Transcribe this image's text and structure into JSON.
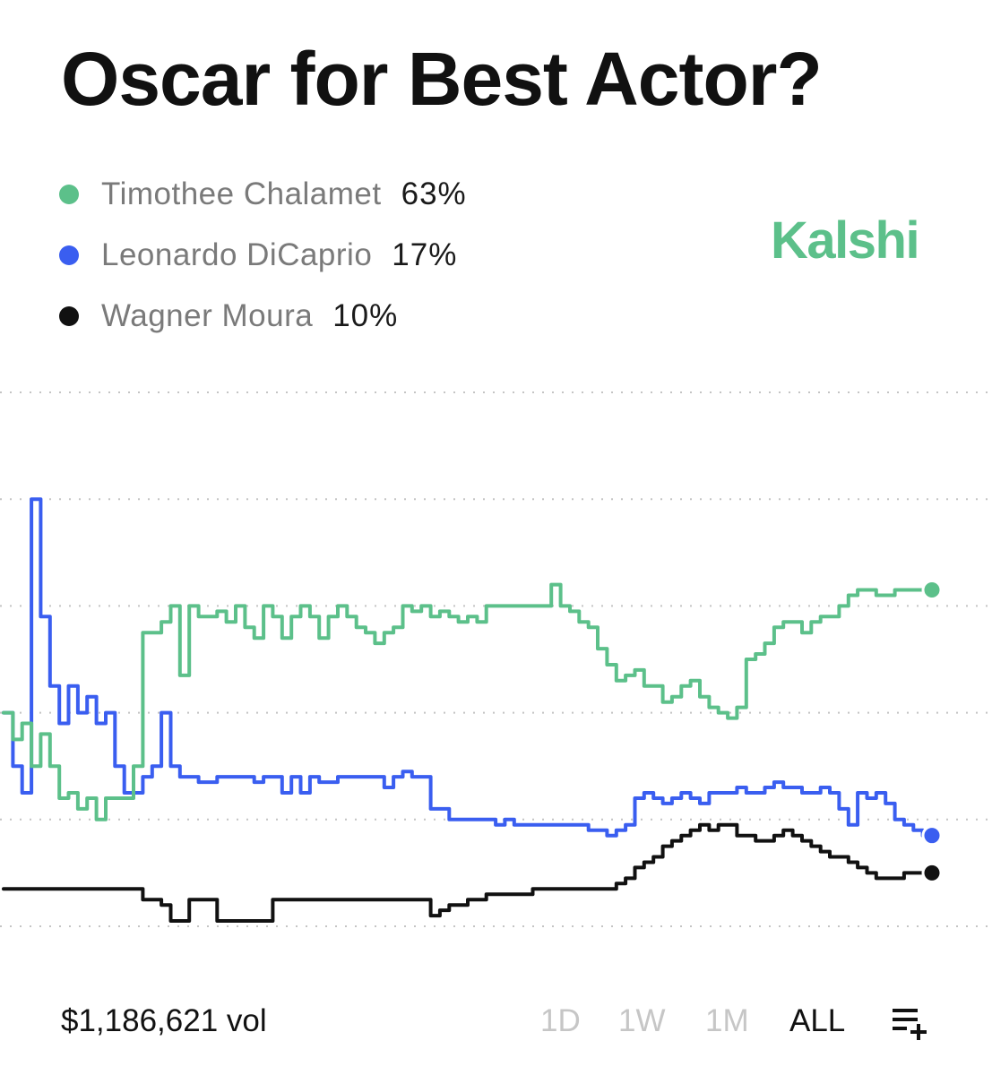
{
  "title": "Oscar for Best Actor?",
  "brand": {
    "name": "Kalshi",
    "color": "#5cc08a"
  },
  "legend": [
    {
      "name": "Timothee Chalamet",
      "pct": "63%",
      "color": "#5cc08a"
    },
    {
      "name": "Leonardo DiCaprio",
      "pct": "17%",
      "color": "#3a5ef0"
    },
    {
      "name": "Wagner Moura",
      "pct": "10%",
      "color": "#111111"
    }
  ],
  "footer": {
    "volume": "$1,186,621 vol",
    "ranges": [
      "1D",
      "1W",
      "1M",
      "ALL"
    ],
    "active_range": "ALL",
    "menu_icon": "list-add-icon"
  },
  "chart_data": {
    "type": "line",
    "grid": true,
    "grid_style": "dotted",
    "ylim": [
      0,
      100
    ],
    "gridlines": [
      0,
      20,
      40,
      60,
      80,
      100
    ],
    "x": [
      0,
      1,
      2,
      3,
      4,
      5,
      6,
      7,
      8,
      9,
      10,
      11,
      12,
      13,
      14,
      15,
      16,
      17,
      18,
      19,
      20,
      21,
      22,
      23,
      24,
      25,
      26,
      27,
      28,
      29,
      30,
      31,
      32,
      33,
      34,
      35,
      36,
      37,
      38,
      39,
      40,
      41,
      42,
      43,
      44,
      45,
      46,
      47,
      48,
      49,
      50,
      51,
      52,
      53,
      54,
      55,
      56,
      57,
      58,
      59,
      60,
      61,
      62,
      63,
      64,
      65,
      66,
      67,
      68,
      69,
      70,
      71,
      72,
      73,
      74,
      75,
      76,
      77,
      78,
      79,
      80,
      81,
      82,
      83,
      84,
      85,
      86,
      87,
      88,
      89,
      90,
      91,
      92,
      93,
      94,
      95,
      96,
      97,
      98,
      99,
      100
    ],
    "series": [
      {
        "name": "Timothee Chalamet",
        "color": "#5cc08a",
        "values": [
          40,
          35,
          38,
          30,
          36,
          30,
          24,
          25,
          22,
          24,
          20,
          24,
          24,
          24,
          30,
          55,
          55,
          57,
          60,
          47,
          60,
          58,
          58,
          59,
          57,
          60,
          56,
          54,
          60,
          58,
          54,
          58,
          60,
          58,
          54,
          58,
          60,
          58,
          56,
          55,
          53,
          55,
          56,
          60,
          59,
          60,
          58,
          59,
          58,
          57,
          58,
          57,
          60,
          60,
          60,
          60,
          60,
          60,
          60,
          64,
          60,
          59,
          57,
          56,
          52,
          49,
          46,
          47,
          48,
          45,
          45,
          42,
          43,
          45,
          46,
          43,
          41,
          40,
          39,
          41,
          50,
          51,
          53,
          56,
          57,
          57,
          55,
          57,
          58,
          58,
          60,
          62,
          63,
          63,
          62,
          62,
          63,
          63,
          63,
          63,
          63
        ]
      },
      {
        "name": "Leonardo DiCaprio",
        "color": "#3a5ef0",
        "values": [
          40,
          30,
          25,
          80,
          58,
          45,
          38,
          45,
          40,
          43,
          38,
          40,
          30,
          25,
          25,
          28,
          30,
          40,
          30,
          28,
          28,
          27,
          27,
          28,
          28,
          28,
          28,
          27,
          28,
          28,
          25,
          28,
          25,
          28,
          27,
          27,
          28,
          28,
          28,
          28,
          28,
          26,
          28,
          29,
          28,
          28,
          22,
          22,
          20,
          20,
          20,
          20,
          20,
          19,
          20,
          19,
          19,
          19,
          19,
          19,
          19,
          19,
          19,
          18,
          18,
          17,
          18,
          19,
          24,
          25,
          24,
          23,
          24,
          25,
          24,
          23,
          25,
          25,
          25,
          26,
          25,
          25,
          26,
          27,
          26,
          26,
          25,
          25,
          26,
          25,
          22,
          19,
          25,
          24,
          25,
          23,
          20,
          19,
          18,
          17,
          17
        ]
      },
      {
        "name": "Wagner Moura",
        "color": "#111111",
        "values": [
          7,
          7,
          7,
          7,
          7,
          7,
          7,
          7,
          7,
          7,
          7,
          7,
          7,
          7,
          7,
          5,
          5,
          4,
          1,
          1,
          5,
          5,
          5,
          1,
          1,
          1,
          1,
          1,
          1,
          5,
          5,
          5,
          5,
          5,
          5,
          5,
          5,
          5,
          5,
          5,
          5,
          5,
          5,
          5,
          5,
          5,
          2,
          3,
          4,
          4,
          5,
          5,
          6,
          6,
          6,
          6,
          6,
          7,
          7,
          7,
          7,
          7,
          7,
          7,
          7,
          7,
          8,
          9,
          11,
          12,
          13,
          15,
          16,
          17,
          18,
          19,
          18,
          19,
          19,
          17,
          17,
          16,
          16,
          17,
          18,
          17,
          16,
          15,
          14,
          13,
          13,
          12,
          11,
          10,
          9,
          9,
          9,
          10,
          10,
          10,
          10
        ]
      }
    ]
  }
}
